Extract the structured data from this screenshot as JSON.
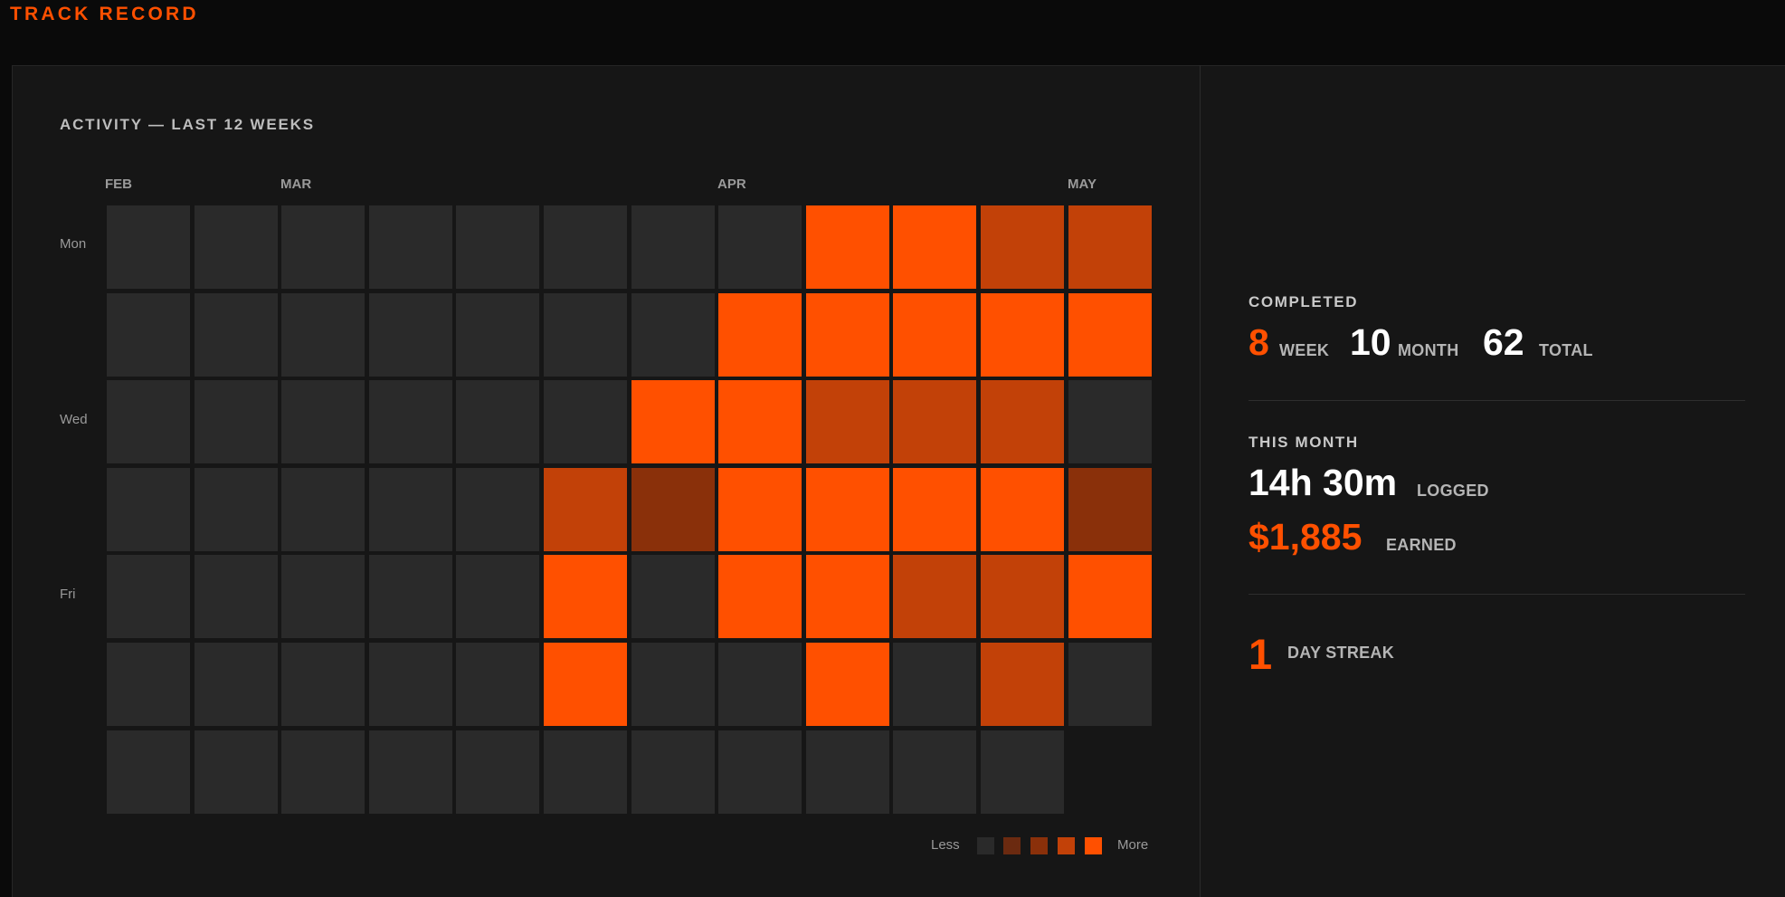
{
  "app": {
    "title": "TRACK RECORD"
  },
  "activity": {
    "title": "ACTIVITY — LAST 12 WEEKS",
    "months": [
      "FEB",
      "MAR",
      "APR",
      "MAY"
    ],
    "days": [
      "Mon",
      "Wed",
      "Fri"
    ],
    "levels": [
      [
        0,
        0,
        0,
        0,
        0,
        0,
        0,
        0,
        4,
        4,
        3,
        3
      ],
      [
        0,
        0,
        0,
        0,
        0,
        0,
        0,
        4,
        4,
        4,
        4,
        4
      ],
      [
        0,
        0,
        0,
        0,
        0,
        0,
        4,
        4,
        3,
        3,
        3,
        0
      ],
      [
        0,
        0,
        0,
        0,
        0,
        3,
        2,
        4,
        4,
        4,
        4,
        2
      ],
      [
        0,
        0,
        0,
        0,
        0,
        4,
        0,
        4,
        4,
        3,
        3,
        4
      ],
      [
        0,
        0,
        0,
        0,
        0,
        4,
        0,
        0,
        4,
        0,
        3,
        0
      ],
      [
        0,
        0,
        0,
        0,
        0,
        0,
        0,
        0,
        0,
        0,
        0,
        null
      ]
    ],
    "level_colors": [
      "#2a2a2a",
      "#6b2a10",
      "#8a300a",
      "#c24108",
      "#ff5000"
    ],
    "legend": {
      "less": "Less",
      "more": "More"
    }
  },
  "stats": {
    "completed": {
      "heading": "COMPLETED",
      "week_value": "8",
      "week_label": "WEEK",
      "month_value": "10",
      "month_label": "MONTH",
      "total_value": "62",
      "total_label": "TOTAL"
    },
    "this_month": {
      "heading": "THIS MONTH",
      "logged_value": "14h 30m",
      "logged_label": "LOGGED",
      "earned_value": "$1,885",
      "earned_label": "EARNED"
    },
    "streak": {
      "value": "1",
      "label": "DAY STREAK"
    }
  }
}
